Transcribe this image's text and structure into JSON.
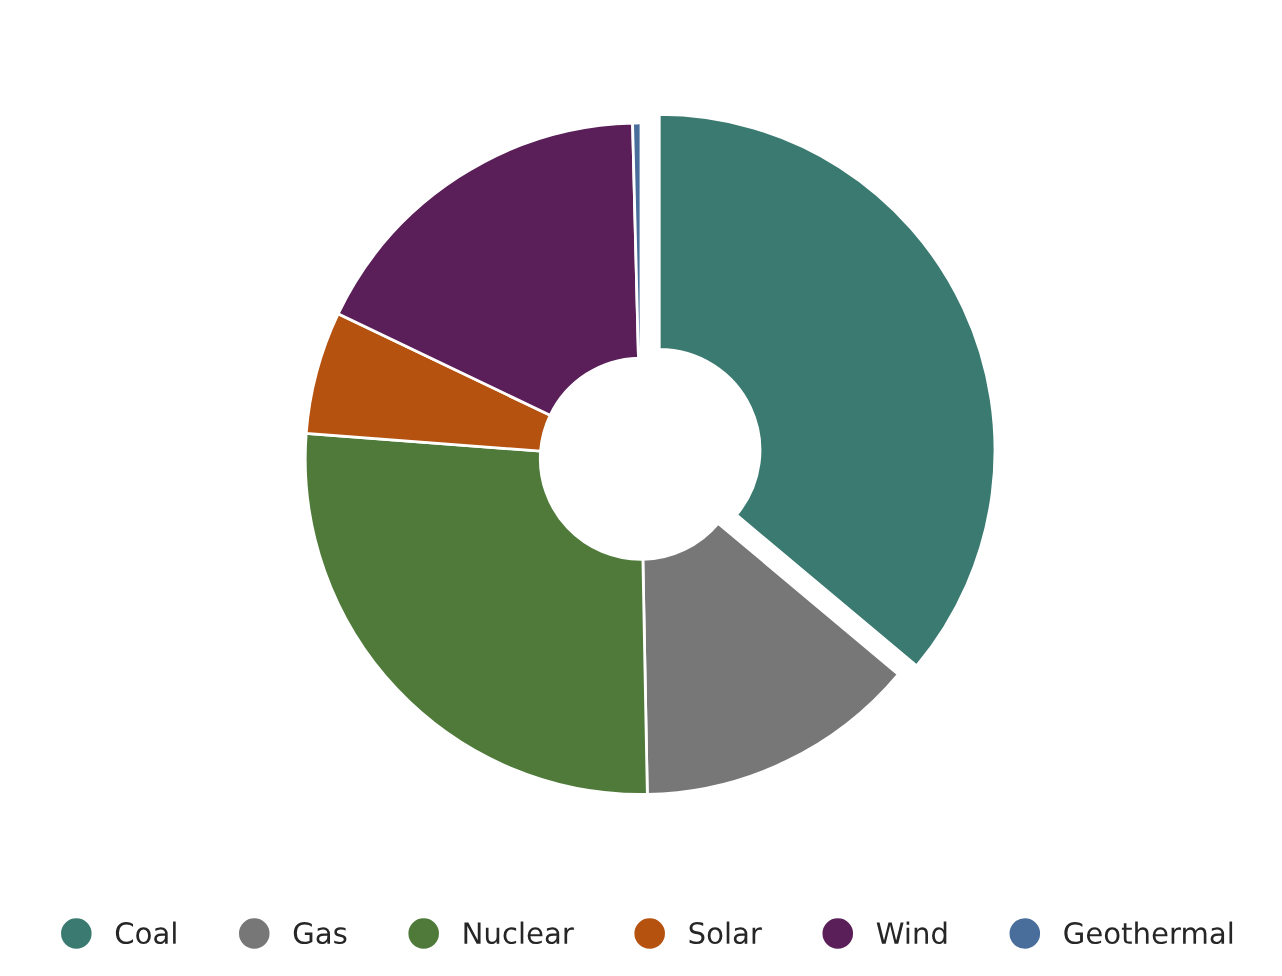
{
  "chart_data": {
    "type": "donut",
    "categories": [
      "Coal",
      "Gas",
      "Nuclear",
      "Solar",
      "Wind",
      "Geothermal"
    ],
    "values": [
      36.1,
      13.6,
      26.5,
      5.9,
      17.5,
      0.4
    ],
    "colors": [
      "#3a7a70",
      "#777777",
      "#4f7a3a",
      "#b5520f",
      "#5a1f58",
      "#4a6e9c"
    ],
    "legend": "bottom"
  }
}
